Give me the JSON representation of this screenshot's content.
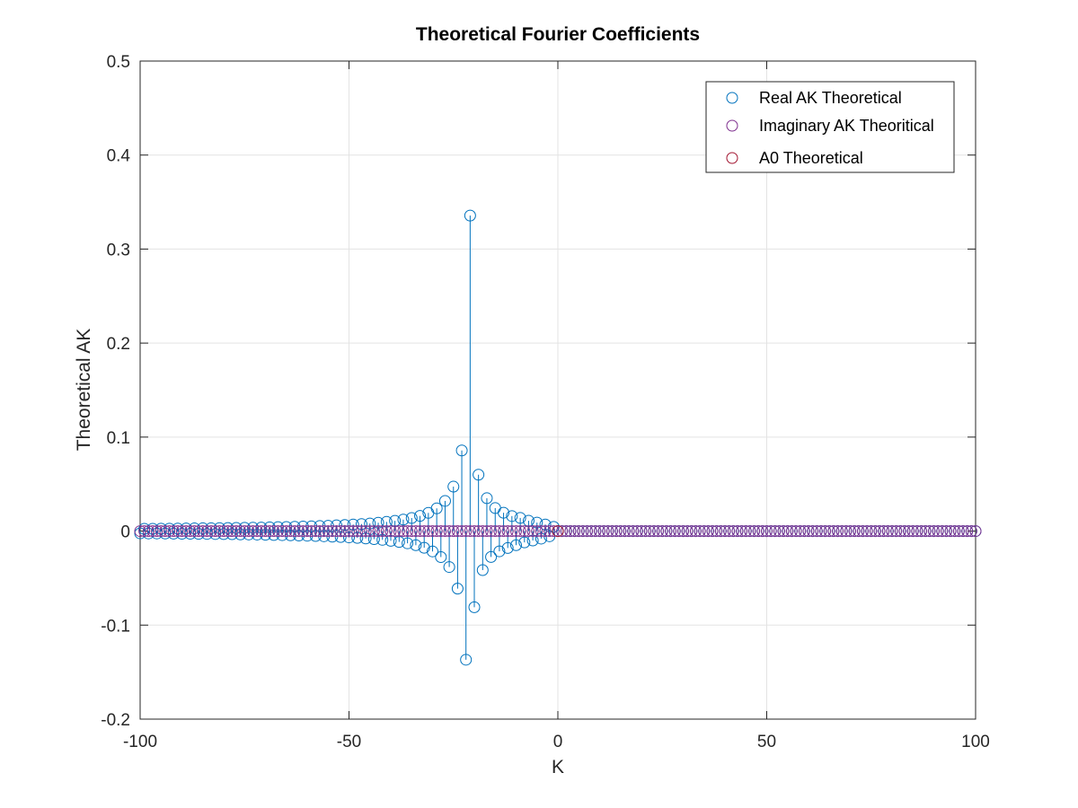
{
  "chart_data": {
    "type": "scatter",
    "style": "stem",
    "title": "Theoretical Fourier Coefficients",
    "xlabel": "K",
    "ylabel": "Theoretical AK",
    "xlim": [
      -100,
      100
    ],
    "ylim": [
      -0.2,
      0.5
    ],
    "xticks": [
      -100,
      -50,
      0,
      50,
      100
    ],
    "xtick_labels": [
      "-100",
      "-50",
      "0",
      "50",
      "100"
    ],
    "yticks": [
      -0.2,
      -0.1,
      0,
      0.1,
      0.2,
      0.3,
      0.4,
      0.5
    ],
    "ytick_labels": [
      "-0.2",
      "-0.1",
      "0",
      "0.1",
      "0.2",
      "0.3",
      "0.4",
      "0.5"
    ],
    "grid": true,
    "legend_position": "top-right",
    "x": [
      -100,
      -99,
      -98,
      -97,
      -96,
      -95,
      -94,
      -93,
      -92,
      -91,
      -90,
      -89,
      -88,
      -87,
      -86,
      -85,
      -84,
      -83,
      -82,
      -81,
      -80,
      -79,
      -78,
      -77,
      -76,
      -75,
      -74,
      -73,
      -72,
      -71,
      -70,
      -69,
      -68,
      -67,
      -66,
      -65,
      -64,
      -63,
      -62,
      -61,
      -60,
      -59,
      -58,
      -57,
      -56,
      -55,
      -54,
      -53,
      -52,
      -51,
      -50,
      -49,
      -48,
      -47,
      -46,
      -45,
      -44,
      -43,
      -42,
      -41,
      -40,
      -39,
      -38,
      -37,
      -36,
      -35,
      -34,
      -33,
      -32,
      -31,
      -30,
      -29,
      -28,
      -27,
      -26,
      -25,
      -24,
      -23,
      -22,
      -21,
      -20,
      -19,
      -18,
      -17,
      -16,
      -15,
      -14,
      -13,
      -12,
      -11,
      -10,
      -9,
      -8,
      -7,
      -6,
      -5,
      -4,
      -3,
      -2,
      -1,
      0,
      1,
      2,
      3,
      4,
      5,
      6,
      7,
      8,
      9,
      10,
      11,
      12,
      13,
      14,
      15,
      16,
      17,
      18,
      19,
      20,
      21,
      22,
      23,
      24,
      25,
      26,
      27,
      28,
      29,
      30,
      31,
      32,
      33,
      34,
      35,
      36,
      37,
      38,
      39,
      40,
      41,
      42,
      43,
      44,
      45,
      46,
      47,
      48,
      49,
      50,
      51,
      52,
      53,
      54,
      55,
      56,
      57,
      58,
      59,
      60,
      61,
      62,
      63,
      64,
      65,
      66,
      67,
      68,
      69,
      70,
      71,
      72,
      73,
      74,
      75,
      76,
      77,
      78,
      79,
      80,
      81,
      82,
      83,
      84,
      85,
      86,
      87,
      88,
      89,
      90,
      91,
      92,
      93,
      94,
      95,
      96,
      97,
      98,
      99,
      100
    ],
    "series": [
      {
        "name": "Real AK Theoretical",
        "color": "#0072BD",
        "values": [
          -0.0024,
          0.0024,
          -0.0025,
          0.0025,
          -0.0025,
          0.0026,
          -0.0026,
          0.0026,
          -0.0027,
          0.0027,
          -0.0028,
          0.0028,
          -0.0028,
          0.0029,
          -0.0029,
          0.003,
          -0.003,
          0.0031,
          -0.0031,
          0.0032,
          -0.0032,
          0.0033,
          -0.0033,
          0.0034,
          -0.0035,
          0.0035,
          -0.0036,
          0.0037,
          -0.0037,
          0.0038,
          -0.0039,
          0.004,
          -0.0041,
          0.0042,
          -0.0043,
          0.0044,
          -0.0045,
          0.0046,
          -0.0047,
          0.0048,
          -0.0049,
          0.0051,
          -0.0052,
          0.0054,
          -0.0055,
          0.0057,
          -0.0059,
          0.0061,
          -0.0063,
          0.0065,
          -0.0067,
          0.007,
          -0.0072,
          0.0075,
          -0.0078,
          0.0081,
          -0.0085,
          0.0089,
          -0.0093,
          0.0098,
          -0.0103,
          0.0109,
          -0.0115,
          0.0122,
          -0.013,
          0.0139,
          -0.015,
          0.0162,
          -0.0177,
          0.0194,
          -0.0216,
          0.0242,
          -0.0276,
          0.0321,
          -0.0382,
          0.0473,
          -0.0612,
          0.0858,
          -0.1368,
          0.3356,
          -0.081,
          0.06,
          -0.0415,
          0.035,
          -0.0275,
          0.0245,
          -0.0215,
          0.0195,
          -0.018,
          0.016,
          -0.015,
          0.014,
          -0.012,
          0.011,
          -0.01,
          0.009,
          -0.008,
          0.007,
          -0.0055,
          0.0045,
          0,
          0,
          0,
          0,
          0,
          0,
          0,
          0,
          0,
          0,
          0,
          0,
          0,
          0,
          0,
          0,
          0,
          0,
          0,
          0,
          0,
          0,
          0,
          0,
          0,
          0,
          0,
          0,
          0,
          0,
          0,
          0,
          0,
          0,
          0,
          0,
          0,
          0,
          0,
          0,
          0,
          0,
          0,
          0,
          0,
          0,
          0,
          0,
          0,
          0,
          0,
          0,
          0,
          0,
          0,
          0,
          0,
          0,
          0,
          0,
          0,
          0,
          0,
          0,
          0,
          0,
          0,
          0,
          0,
          0,
          0,
          0,
          0,
          0,
          0,
          0,
          0,
          0,
          0,
          0,
          0,
          0,
          0,
          0,
          0,
          0,
          0,
          0,
          0,
          0,
          0,
          0,
          0,
          0,
          0,
          0,
          0,
          0,
          0,
          0,
          0
        ]
      },
      {
        "name": "Imaginary AK Theoritical",
        "color": "#7E2F8E",
        "values": []
      },
      {
        "name": "A0 Theoretical",
        "color": "#A2142F",
        "values": [
          0
        ]
      }
    ]
  }
}
